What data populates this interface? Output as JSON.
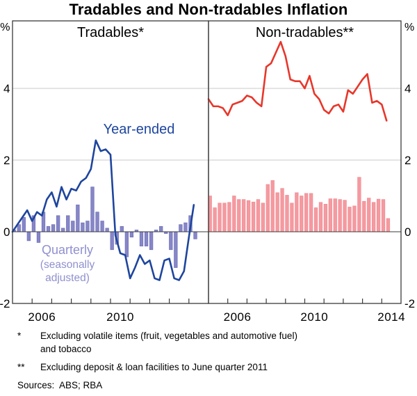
{
  "title": "Tradables and Non-tradables Inflation",
  "axes": {
    "unit_label": "%",
    "yticks": [
      {
        "label": "4",
        "value": 4
      },
      {
        "label": "2",
        "value": 2
      },
      {
        "label": "0",
        "value": 0
      },
      {
        "label": "-2",
        "value": -2
      }
    ],
    "ylim": [
      -2,
      6
    ],
    "gridline_color": "#c8c8c8",
    "zero_line_color": "#3a3a3a",
    "frame_color": "#3a3a3a"
  },
  "chart_data": [
    {
      "panel": "left",
      "title": "Tradables*",
      "type": "line+bar",
      "x_unit": "quarter",
      "x": [
        "2004Q4",
        "2005Q1",
        "2005Q2",
        "2005Q3",
        "2005Q4",
        "2006Q1",
        "2006Q2",
        "2006Q3",
        "2006Q4",
        "2007Q1",
        "2007Q2",
        "2007Q3",
        "2007Q4",
        "2008Q1",
        "2008Q2",
        "2008Q3",
        "2008Q4",
        "2009Q1",
        "2009Q2",
        "2009Q3",
        "2009Q4",
        "2010Q1",
        "2010Q2",
        "2010Q3",
        "2010Q4",
        "2011Q1",
        "2011Q2",
        "2011Q3",
        "2011Q4",
        "2012Q1",
        "2012Q2",
        "2012Q3",
        "2012Q4",
        "2013Q1",
        "2013Q2",
        "2013Q3",
        "2013Q4",
        "2014Q1"
      ],
      "series": [
        {
          "name": "Year-ended",
          "type": "line",
          "color": "#1e459e",
          "values": [
            0.0,
            0.2,
            0.4,
            0.6,
            0.3,
            0.55,
            0.45,
            0.9,
            1.1,
            0.7,
            1.25,
            0.9,
            1.2,
            1.15,
            1.4,
            1.5,
            1.75,
            2.55,
            2.25,
            2.3,
            2.15,
            -0.1,
            -0.6,
            -0.65,
            -1.3,
            -1.0,
            -0.65,
            -0.9,
            -0.8,
            -1.3,
            -1.35,
            -0.8,
            -0.75,
            -1.3,
            -1.35,
            -1.1,
            -0.15,
            0.75
          ]
        },
        {
          "name": "Quarterly (seasonally adjusted)",
          "type": "bar",
          "color": "#8686c8",
          "edge_color": "#6f6fb6",
          "values": [
            0.05,
            0.2,
            0.4,
            -0.25,
            0.45,
            -0.3,
            0.55,
            0.15,
            0.2,
            0.45,
            0.1,
            0.45,
            0.3,
            0.75,
            0.25,
            0.3,
            1.25,
            0.55,
            0.3,
            0.1,
            -0.5,
            -0.35,
            0.15,
            -0.7,
            -0.15,
            0.05,
            -0.4,
            -0.4,
            -0.5,
            0.05,
            0.15,
            -0.05,
            -0.5,
            -1.0,
            0.2,
            0.25,
            0.45,
            -0.2
          ]
        }
      ],
      "labels": {
        "line": "Year-ended",
        "bar": [
          "Quarterly",
          "(seasonally",
          "adjusted)"
        ],
        "bar_label_color": "#9090d0"
      },
      "xticks": [
        {
          "label": "2006",
          "year": 2006
        },
        {
          "label": "2010",
          "year": 2010
        }
      ],
      "gridlines": [
        2,
        4
      ]
    },
    {
      "panel": "right",
      "title": "Non-tradables**",
      "type": "line+bar",
      "x_unit": "quarter",
      "x": [
        "2004Q4",
        "2005Q1",
        "2005Q2",
        "2005Q3",
        "2005Q4",
        "2006Q1",
        "2006Q2",
        "2006Q3",
        "2006Q4",
        "2007Q1",
        "2007Q2",
        "2007Q3",
        "2007Q4",
        "2008Q1",
        "2008Q2",
        "2008Q3",
        "2008Q4",
        "2009Q1",
        "2009Q2",
        "2009Q3",
        "2009Q4",
        "2010Q1",
        "2010Q2",
        "2010Q3",
        "2010Q4",
        "2011Q1",
        "2011Q2",
        "2011Q3",
        "2011Q4",
        "2012Q1",
        "2012Q2",
        "2012Q3",
        "2012Q4",
        "2013Q1",
        "2013Q2",
        "2013Q3",
        "2013Q4",
        "2014Q1"
      ],
      "series": [
        {
          "name": "Year-ended",
          "type": "line",
          "color": "#e8362a",
          "values": [
            3.7,
            3.5,
            3.5,
            3.45,
            3.25,
            3.55,
            3.6,
            3.65,
            3.8,
            3.75,
            3.6,
            3.5,
            4.6,
            4.7,
            5.0,
            5.3,
            4.9,
            4.25,
            4.2,
            4.2,
            4.0,
            4.35,
            3.85,
            3.7,
            3.4,
            3.3,
            3.5,
            3.55,
            3.35,
            3.95,
            3.85,
            4.05,
            4.25,
            4.4,
            3.6,
            3.65,
            3.55,
            3.1
          ]
        },
        {
          "name": "Quarterly (seasonally adjusted)",
          "type": "bar",
          "color": "#f59aa0",
          "edge_color": "#ef8d94",
          "values": [
            1.0,
            0.67,
            0.8,
            0.8,
            0.82,
            1.0,
            0.9,
            0.9,
            0.87,
            0.83,
            0.9,
            0.8,
            1.32,
            1.43,
            1.09,
            1.21,
            1.02,
            0.8,
            1.09,
            1.0,
            1.07,
            1.07,
            0.67,
            0.82,
            0.77,
            0.92,
            0.92,
            0.9,
            0.88,
            0.69,
            0.72,
            1.52,
            0.85,
            0.94,
            0.82,
            0.91,
            0.9,
            0.37
          ]
        }
      ],
      "labels": {},
      "xticks": [
        {
          "label": "2006",
          "year": 2006
        },
        {
          "label": "2010",
          "year": 2010
        },
        {
          "label": "2014",
          "year": 2014
        }
      ],
      "gridlines": [
        2,
        4
      ]
    }
  ],
  "footnotes": [
    {
      "marker": "*",
      "lines": [
        "Excluding volatile items (fruit, vegetables and automotive fuel)",
        "and tobacco"
      ]
    },
    {
      "marker": "**",
      "lines": [
        "Excluding deposit & loan facilities to June quarter 2011"
      ]
    }
  ],
  "sources": "Sources:  ABS; RBA"
}
